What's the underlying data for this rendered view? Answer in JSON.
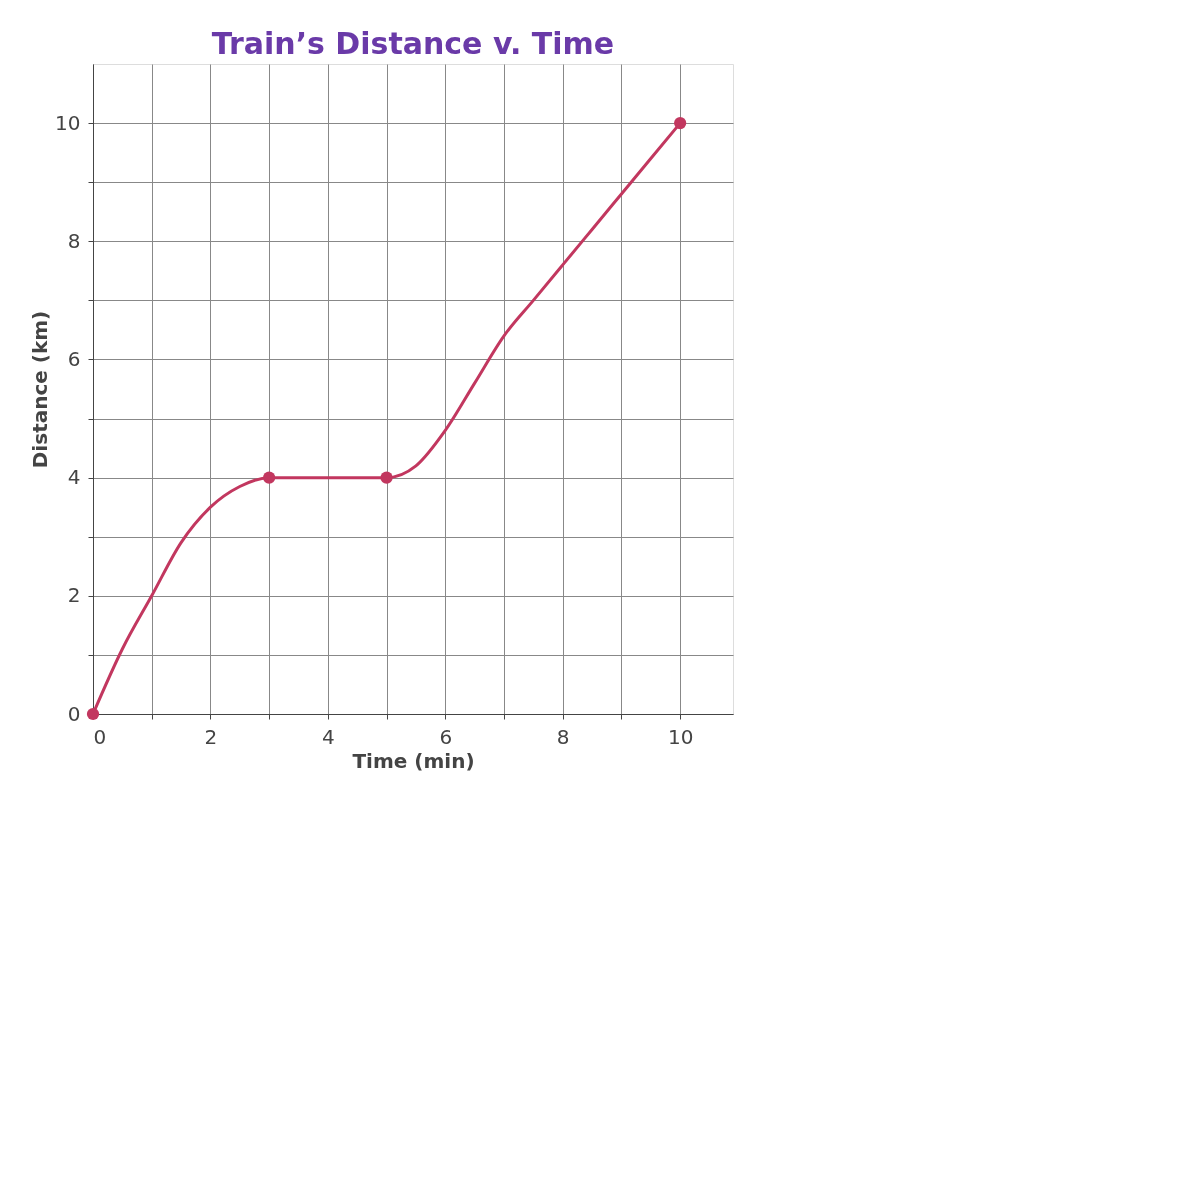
{
  "chart_data": {
    "type": "line",
    "title": "Train’s Distance v. Time",
    "xlabel": "Time (min)",
    "ylabel": "Distance (km)",
    "series": [
      {
        "color": "#c2375f",
        "x": [
          0,
          0.5,
          1,
          1.5,
          2,
          2.5,
          3,
          4,
          5,
          5.5,
          6,
          6.5,
          7,
          7.5,
          8,
          8.5,
          9,
          9.5,
          10
        ],
        "values": [
          0,
          1.1,
          2.0,
          2.9,
          3.5,
          3.85,
          4,
          4,
          4,
          4.2,
          4.8,
          5.6,
          6.4,
          7.0,
          7.6,
          8.2,
          8.8,
          9.4,
          10
        ],
        "marker": "none"
      },
      {
        "type": "scatter",
        "color": "#c2375f",
        "x": [
          0,
          3,
          5,
          10
        ],
        "values": [
          0,
          4,
          4,
          10
        ],
        "marker": "circle"
      }
    ],
    "xlim": [
      0,
      10.9
    ],
    "ylim": [
      0,
      11
    ],
    "xticks": [
      0,
      {
        "value": 1,
        "label": null
      },
      2,
      {
        "value": 3,
        "label": null
      },
      4,
      {
        "value": 5,
        "label": null
      },
      6,
      {
        "value": 7,
        "label": null
      },
      8,
      {
        "value": 9,
        "label": null
      },
      10
    ],
    "yticks": [
      0,
      {
        "value": 1,
        "label": null
      },
      2,
      {
        "value": 3,
        "label": null
      },
      4,
      {
        "value": 5,
        "label": null
      },
      6,
      {
        "value": 7,
        "label": null
      },
      8,
      {
        "value": 9,
        "label": null
      },
      10
    ],
    "grid": true
  }
}
